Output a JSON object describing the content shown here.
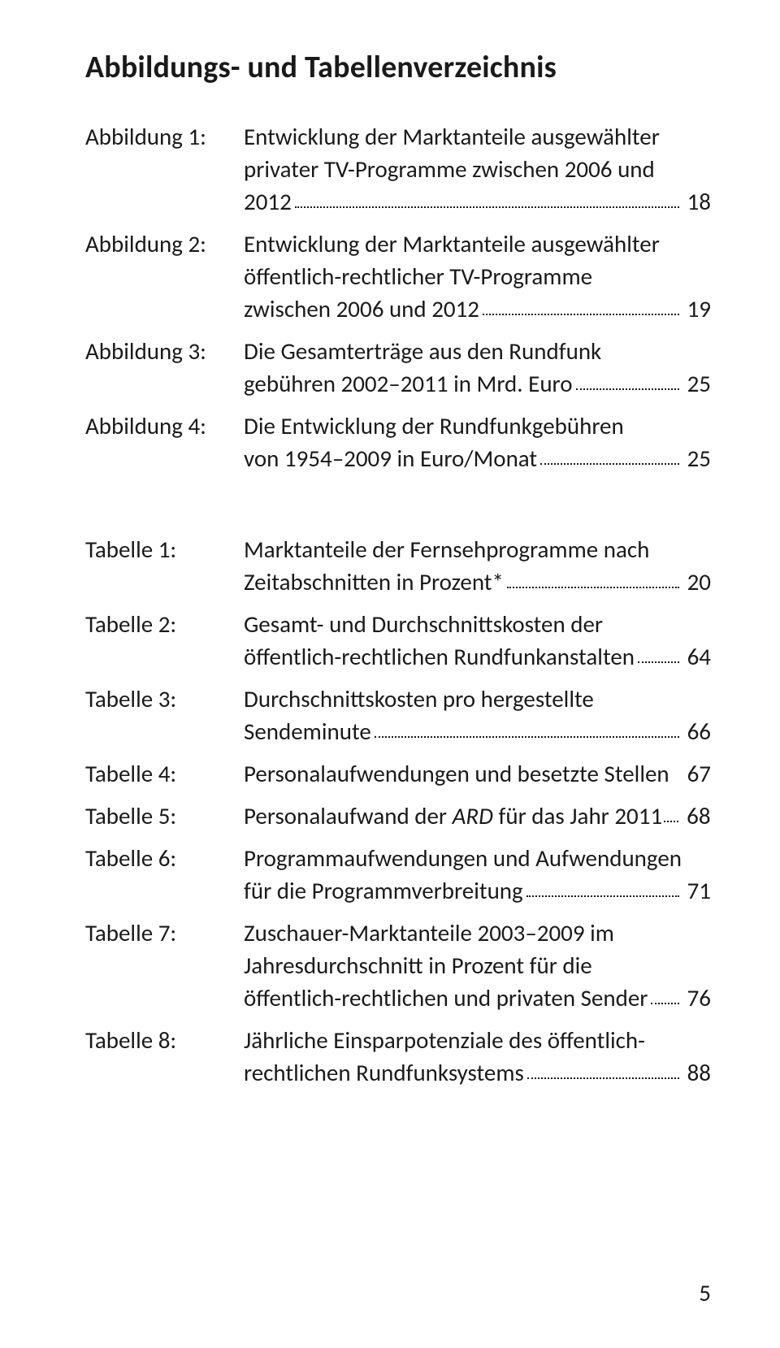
{
  "title": "Abbildungs- und Tabellenverzeichnis",
  "abbildungen": [
    {
      "label": "Abbildung 1:",
      "lines": [
        "Entwicklung der Marktanteile ausgewählter",
        "privater TV-Programme zwischen 2006 und"
      ],
      "lastLine": "2012",
      "page": "18"
    },
    {
      "label": "Abbildung 2:",
      "lines": [
        "Entwicklung der Marktanteile ausgewählter",
        "öffentlich-rechtlicher TV-Programme"
      ],
      "lastLine": "zwischen 2006 und 2012",
      "page": "19"
    },
    {
      "label": "Abbildung 3:",
      "lines": [
        "Die Gesamterträge aus den Rundfunk"
      ],
      "lastLine": "gebühren 2002–2011 in Mrd. Euro",
      "page": "25"
    },
    {
      "label": "Abbildung 4:",
      "lines": [
        "Die Entwicklung der Rundfunkgebühren"
      ],
      "lastLine": "von 1954–2009 in Euro/Monat",
      "page": "25"
    }
  ],
  "tabellen": [
    {
      "label": "Tabelle 1:",
      "lines": [
        "Marktanteile der Fernsehprogramme nach"
      ],
      "lastLine": "Zeitabschnitten in Prozent*",
      "page": "20"
    },
    {
      "label": "Tabelle 2:",
      "lines": [
        "Gesamt- und Durchschnittskosten der"
      ],
      "lastLine": "öffentlich-rechtlichen Rundfunkanstalten",
      "page": "64"
    },
    {
      "label": "Tabelle 3:",
      "lines": [
        "Durchschnittskosten pro hergestellte"
      ],
      "lastLine": "Sendeminute",
      "page": "66"
    },
    {
      "label": "Tabelle 4:",
      "lines": [],
      "lastLine": "Personalaufwendungen und besetzte Stellen",
      "page": "67",
      "noDots": true
    },
    {
      "label": "Tabelle 5:",
      "lines": [],
      "lastLinePrefix": "Personalaufwand der ",
      "lastLineItalic": "ARD",
      "lastLineSuffix": " für das Jahr 2011",
      "page": "68",
      "narrowDots": true
    },
    {
      "label": "Tabelle 6:",
      "lines": [
        "Programmaufwendungen und Aufwendungen"
      ],
      "lastLine": "für die Programmverbreitung",
      "page": "71"
    },
    {
      "label": "Tabelle 7:",
      "lines": [
        "Zuschauer-Marktanteile 2003–2009 im",
        "Jahresdurchschnitt in Prozent für die"
      ],
      "lastLine": "öffentlich-rechtlichen und privaten Sender",
      "page": "76"
    },
    {
      "label": "Tabelle 8:",
      "lines": [
        "Jährliche Einsparpotenziale des öffentlich-"
      ],
      "lastLine": "rechtlichen Rundfunksystems",
      "page": "88"
    }
  ],
  "footerPage": "5"
}
